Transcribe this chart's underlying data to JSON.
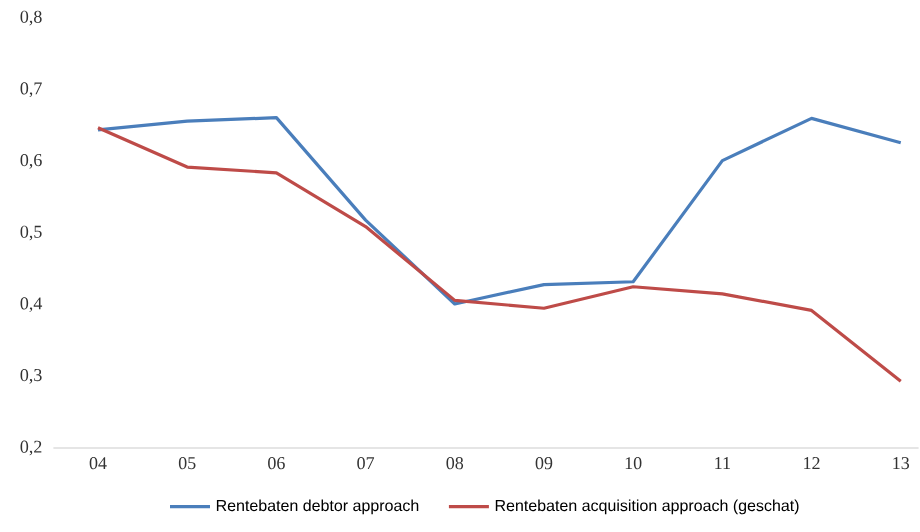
{
  "chart_data": {
    "type": "line",
    "categories": [
      "04",
      "05",
      "06",
      "07",
      "08",
      "09",
      "10",
      "11",
      "12",
      "13"
    ],
    "series": [
      {
        "name": "Rentebaten debtor approach",
        "color": "#4a7ebb",
        "values": [
          0.644,
          0.656,
          0.661,
          0.518,
          0.401,
          0.428,
          0.432,
          0.601,
          0.66,
          0.626
        ]
      },
      {
        "name": "Rentebaten acquisition approach (geschat)",
        "color": "#be4b48",
        "values": [
          0.647,
          0.592,
          0.584,
          0.509,
          0.406,
          0.395,
          0.425,
          0.415,
          0.392,
          0.293
        ]
      }
    ],
    "ylim": [
      0.2,
      0.8
    ],
    "yticks": [
      {
        "value": 0.2,
        "label": "0,2"
      },
      {
        "value": 0.3,
        "label": "0,3"
      },
      {
        "value": 0.4,
        "label": "0,4"
      },
      {
        "value": 0.5,
        "label": "0,5"
      },
      {
        "value": 0.6,
        "label": "0,6"
      },
      {
        "value": 0.7,
        "label": "0,7"
      },
      {
        "value": 0.8,
        "label": "0,8"
      }
    ],
    "legend": "bottom",
    "grid": false,
    "marker": "none",
    "line_style": "solid"
  }
}
